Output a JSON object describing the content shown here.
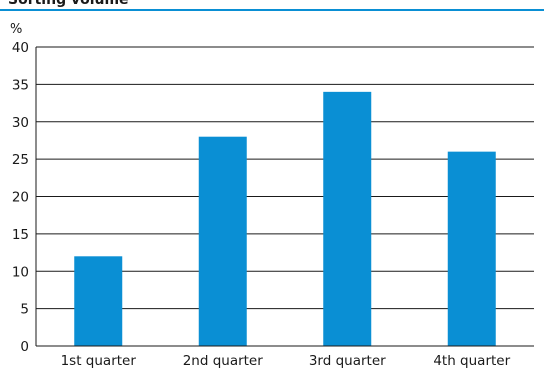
{
  "chart_data": {
    "type": "bar",
    "title": "Sorting volume",
    "unit": "%",
    "categories": [
      "1st quarter",
      "2nd quarter",
      "3rd quarter",
      "4th quarter"
    ],
    "values": [
      12,
      28,
      34,
      26
    ],
    "ylim": [
      0,
      40
    ],
    "yticks": [
      0,
      5,
      10,
      15,
      20,
      25,
      30,
      35,
      40
    ],
    "grid": true,
    "legend": "none",
    "colors": {
      "bar": "#0a8fd4",
      "title_rule": "#0a8fd4",
      "grid": "#1a1a1a"
    }
  }
}
